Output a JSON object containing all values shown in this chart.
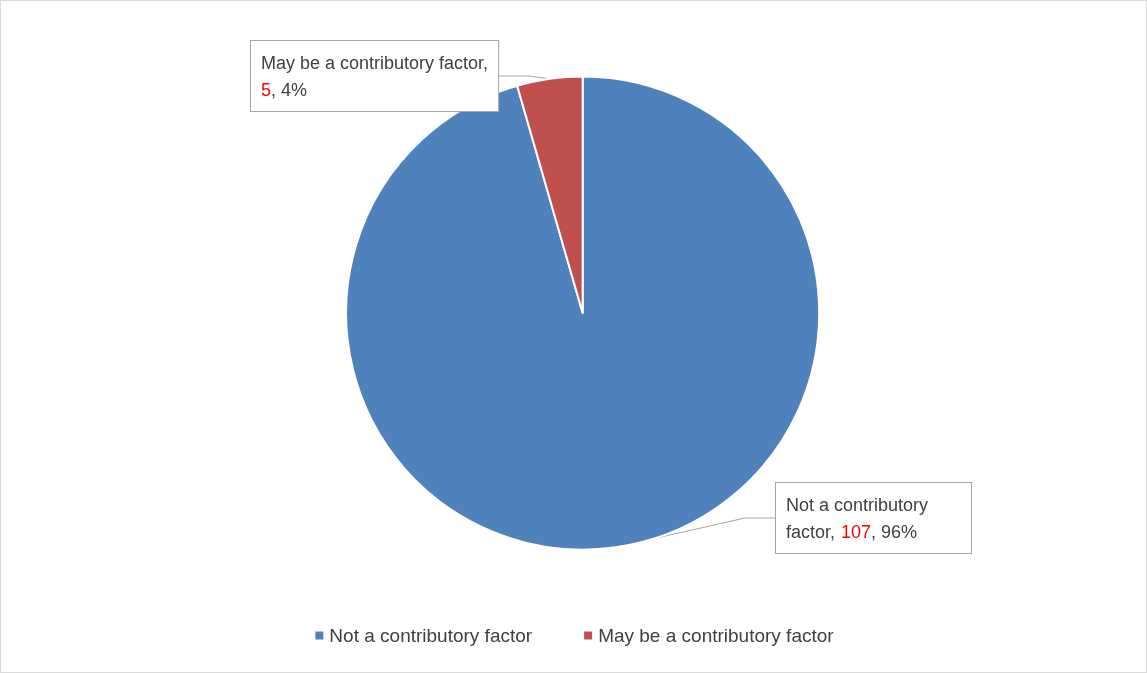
{
  "chart_data": {
    "type": "pie",
    "categories": [
      "Not a contributory factor",
      "May be a contributory factor"
    ],
    "values": [
      107,
      5
    ],
    "colors": [
      "#4f81bd",
      "#c0504d"
    ],
    "value_labels": [
      "Not a contributory factor, 107, 96%",
      "May be a contributory factor, 5, 4%"
    ],
    "legend": "bottom"
  }
}
